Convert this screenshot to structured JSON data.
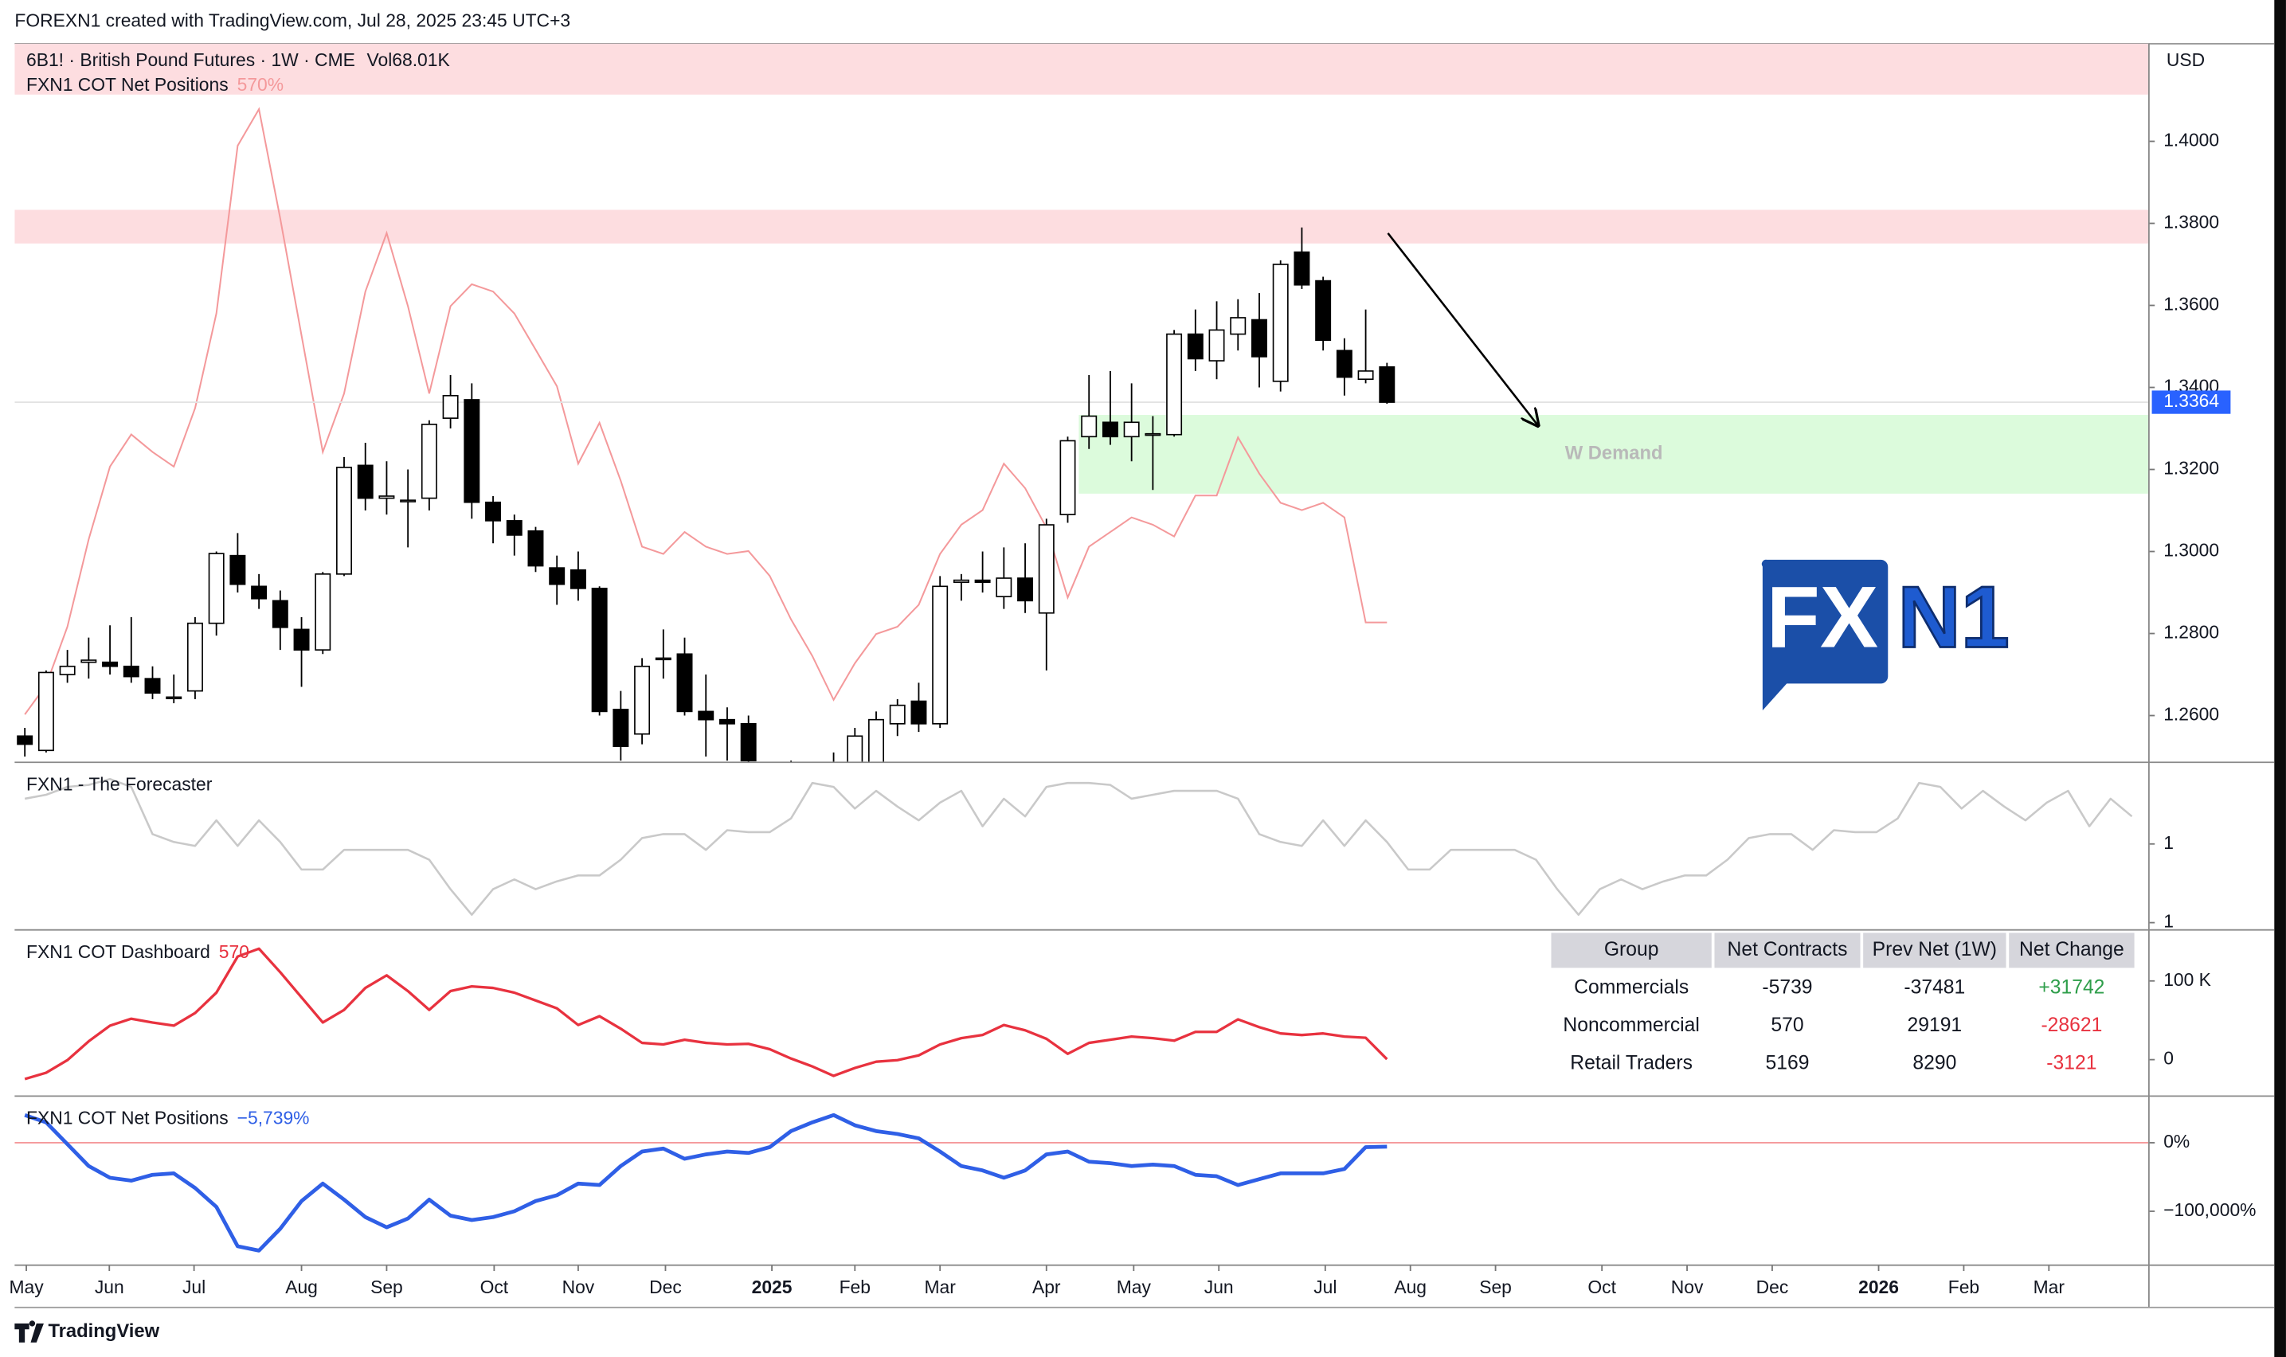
{
  "header": {
    "text": "FOREXN1 created with TradingView.com, Jul 28, 2025 23:45 UTC+3"
  },
  "footer": {
    "brand": "TradingView"
  },
  "logo": {
    "left": "FX",
    "right": "N1"
  },
  "table": {
    "header": [
      "Group",
      "Net Contracts",
      "Prev Net (1W)",
      "Net Change"
    ],
    "rows": [
      [
        "Commercials",
        "-5739",
        "-37481",
        "+31742"
      ],
      [
        "Noncommercial",
        "570",
        "29191",
        "-28621"
      ],
      [
        "Retail Traders",
        "5169",
        "8290",
        "-3121"
      ]
    ]
  },
  "chart_data": [
    {
      "type": "candlestick",
      "title": "6B1! · British Pound Futures · 1W · CME",
      "volume_label": "Vol68.01K",
      "axis_unit": "USD",
      "up_color": "#ffffff",
      "down_color": "#000000",
      "open": [
        1.255,
        1.2515,
        1.27,
        1.273,
        1.273,
        1.272,
        1.269,
        1.2645,
        1.266,
        1.2825,
        1.299,
        1.2915,
        1.288,
        1.281,
        1.276,
        1.2945,
        1.321,
        1.313,
        1.3125,
        1.313,
        1.3325,
        1.337,
        1.312,
        1.3075,
        1.305,
        1.296,
        1.2955,
        1.291,
        1.2615,
        1.2555,
        1.274,
        1.275,
        1.261,
        1.259,
        1.258,
        1.247,
        1.232,
        1.242,
        1.24,
        1.245,
        1.247,
        1.258,
        1.2635,
        1.258,
        1.2925,
        1.293,
        1.289,
        1.2935,
        1.285,
        1.309,
        1.328,
        1.3315,
        1.328,
        1.3285,
        1.3285,
        1.353,
        1.3465,
        1.353,
        1.3565,
        1.3415,
        1.373,
        1.366,
        1.349,
        1.342,
        1.345
      ],
      "high": [
        1.257,
        1.271,
        1.276,
        1.279,
        1.282,
        1.284,
        1.272,
        1.27,
        1.284,
        1.3,
        1.3045,
        1.2945,
        1.2905,
        1.284,
        1.295,
        1.323,
        1.3265,
        1.322,
        1.32,
        1.332,
        1.343,
        1.341,
        1.3135,
        1.309,
        1.306,
        1.299,
        1.3,
        1.2915,
        1.266,
        1.274,
        1.281,
        1.279,
        1.27,
        1.262,
        1.26,
        1.248,
        1.249,
        1.248,
        1.251,
        1.257,
        1.261,
        1.264,
        1.268,
        1.294,
        1.2945,
        1.3,
        1.301,
        1.302,
        1.308,
        1.328,
        1.343,
        1.344,
        1.341,
        1.333,
        1.354,
        1.359,
        1.361,
        1.3615,
        1.363,
        1.371,
        1.379,
        1.367,
        1.352,
        1.359,
        1.346
      ],
      "low": [
        1.25,
        1.251,
        1.268,
        1.269,
        1.27,
        1.268,
        1.264,
        1.263,
        1.264,
        1.2795,
        1.29,
        1.286,
        1.276,
        1.267,
        1.275,
        1.294,
        1.31,
        1.309,
        1.301,
        1.31,
        1.33,
        1.308,
        1.302,
        1.299,
        1.295,
        1.287,
        1.288,
        1.26,
        1.249,
        1.253,
        1.269,
        1.26,
        1.25,
        1.249,
        1.23,
        1.21,
        1.225,
        1.23,
        1.236,
        1.244,
        1.244,
        1.255,
        1.256,
        1.257,
        1.288,
        1.29,
        1.286,
        1.285,
        1.271,
        1.307,
        1.325,
        1.326,
        1.322,
        1.315,
        1.328,
        1.344,
        1.342,
        1.349,
        1.34,
        1.339,
        1.364,
        1.349,
        1.338,
        1.341,
        1.336
      ],
      "close": [
        1.253,
        1.2705,
        1.272,
        1.2735,
        1.272,
        1.2695,
        1.2655,
        1.2645,
        1.2825,
        1.2995,
        1.292,
        1.2885,
        1.2815,
        1.276,
        1.2945,
        1.3205,
        1.313,
        1.3135,
        1.3125,
        1.331,
        1.338,
        1.312,
        1.3075,
        1.304,
        1.2965,
        1.292,
        1.291,
        1.261,
        1.2525,
        1.272,
        1.274,
        1.261,
        1.259,
        1.258,
        1.249,
        1.232,
        1.242,
        1.24,
        1.245,
        1.255,
        1.259,
        1.2625,
        1.258,
        1.2915,
        1.293,
        1.2925,
        1.2935,
        1.288,
        1.3065,
        1.327,
        1.333,
        1.328,
        1.3315,
        1.3287,
        1.353,
        1.347,
        1.354,
        1.357,
        1.3475,
        1.37,
        1.365,
        1.3515,
        1.3425,
        1.344,
        1.3364
      ],
      "last_price_label": "1.3364",
      "last_price_color": "#2962ff",
      "ylim": [
        1.2486,
        1.4238
      ],
      "yticks": [
        {
          "value": 1.26,
          "label": "1.2600"
        },
        {
          "value": 1.28,
          "label": "1.2800"
        },
        {
          "value": 1.3,
          "label": "1.3000"
        },
        {
          "value": 1.32,
          "label": "1.3200"
        },
        {
          "value": 1.34,
          "label": "1.3400"
        },
        {
          "value": 1.36,
          "label": "1.3600"
        },
        {
          "value": 1.38,
          "label": "1.3800"
        },
        {
          "value": 1.4,
          "label": "1.4000"
        }
      ],
      "xlim": [
        -0.48,
        99.8
      ],
      "xticks": [
        {
          "value": 0.07,
          "label": "May"
        },
        {
          "value": 3.97,
          "label": "Jun"
        },
        {
          "value": 7.95,
          "label": "Jul"
        },
        {
          "value": 13.0,
          "label": "Aug"
        },
        {
          "value": 17.0,
          "label": "Sep"
        },
        {
          "value": 22.05,
          "label": "Oct"
        },
        {
          "value": 26.0,
          "label": "Nov"
        },
        {
          "value": 30.1,
          "label": "Dec"
        },
        {
          "value": 35.1,
          "label": "2025"
        },
        {
          "value": 39.0,
          "label": "Feb"
        },
        {
          "value": 43.0,
          "label": "Mar"
        },
        {
          "value": 48.0,
          "label": "Apr"
        },
        {
          "value": 52.1,
          "label": "May"
        },
        {
          "value": 56.1,
          "label": "Jun"
        },
        {
          "value": 61.1,
          "label": "Jul"
        },
        {
          "value": 65.1,
          "label": "Aug"
        },
        {
          "value": 69.1,
          "label": "Sep"
        },
        {
          "value": 74.1,
          "label": "Oct"
        },
        {
          "value": 78.1,
          "label": "Nov"
        },
        {
          "value": 82.1,
          "label": "Dec"
        },
        {
          "value": 87.1,
          "label": "2026"
        },
        {
          "value": 91.1,
          "label": "Feb"
        },
        {
          "value": 95.1,
          "label": "Mar"
        }
      ],
      "zones": [
        {
          "range": [
            1.4114,
            1.426
          ],
          "color": "#fddde0"
        },
        {
          "range": [
            1.3751,
            1.3833
          ],
          "color": "#fddde0"
        },
        {
          "range": [
            1.3141,
            1.3333
          ],
          "start": 50,
          "label": "W Demand",
          "color": "#dcfbdc"
        }
      ],
      "overlay": {
        "name": "FXN1 COT Net Positions",
        "value_label": "570%",
        "color": "#f4999b",
        "ylim": [
          -37.7,
          158.9
        ],
        "values": [
          -24.6,
          -16.6,
          -0.6,
          23.3,
          43.2,
          52.0,
          47.2,
          43.2,
          59.2,
          85.1,
          131.0,
          141.0,
          111.1,
          79.1,
          47.2,
          63.2,
          91.1,
          107.1,
          87.1,
          63.2,
          87.1,
          93.1,
          91.1,
          85.1,
          75.2,
          65.2,
          44.0,
          55.2,
          39.3,
          21.3,
          19.3,
          25.3,
          21.3,
          19.3,
          20.1,
          13.3,
          1.4,
          -8.6,
          -20.6,
          -10.6,
          -2.6,
          -0.6,
          5.4,
          19.3,
          27.3,
          31.3,
          44.0,
          37.3,
          26.5,
          7.4,
          21.3,
          25.3,
          29.3,
          27.3,
          24.1,
          35.3,
          35.3,
          51.2,
          41.3,
          33.3,
          31.3,
          33.3,
          29.3,
          0.57,
          0.57
        ]
      }
    },
    {
      "type": "line",
      "title": "FXN1 - The Forecaster",
      "color": "#c9c9c9",
      "ylim": [
        0.763,
        1.615
      ],
      "yticks": [
        {
          "value": 1.2,
          "label": "1"
        },
        {
          "value": 0.8,
          "label": "1"
        }
      ],
      "values": [
        1.43,
        1.45,
        1.49,
        1.5,
        1.53,
        1.49,
        1.25,
        1.21,
        1.19,
        1.32,
        1.19,
        1.32,
        1.21,
        1.07,
        1.07,
        1.17,
        1.17,
        1.17,
        1.17,
        1.12,
        0.97,
        0.84,
        0.97,
        1.02,
        0.97,
        1.01,
        1.04,
        1.04,
        1.12,
        1.23,
        1.25,
        1.25,
        1.17,
        1.27,
        1.26,
        1.26,
        1.33,
        1.51,
        1.49,
        1.38,
        1.47,
        1.39,
        1.32,
        1.41,
        1.47,
        1.29,
        1.43,
        1.34,
        1.49,
        1.51,
        1.51,
        1.5,
        1.43,
        1.45,
        1.47,
        1.47,
        1.47,
        1.43,
        1.25,
        1.21,
        1.19,
        1.32,
        1.19,
        1.32,
        1.21,
        1.07,
        1.07,
        1.17,
        1.17,
        1.17,
        1.17,
        1.12,
        0.97,
        0.84,
        0.97,
        1.02,
        0.97,
        1.01,
        1.04,
        1.04,
        1.12,
        1.23,
        1.25,
        1.25,
        1.17,
        1.27,
        1.26,
        1.26,
        1.33,
        1.51,
        1.49,
        1.38,
        1.47,
        1.39,
        1.32,
        1.41,
        1.47,
        1.29,
        1.43,
        1.34
      ]
    },
    {
      "type": "line",
      "title": "FXN1 COT Dashboard",
      "value_label": "570",
      "color": "#e8323f",
      "ylim": [
        -46.3,
        164.8
      ],
      "yticks": [
        {
          "value": 100,
          "label": "100 K"
        },
        0
      ],
      "values": [
        -24.6,
        -16.6,
        -0.6,
        23.3,
        43.2,
        52.0,
        47.2,
        43.2,
        59.2,
        85.1,
        131.0,
        141.0,
        111.1,
        79.1,
        47.2,
        63.2,
        91.1,
        107.1,
        87.1,
        63.2,
        87.1,
        93.1,
        91.1,
        85.1,
        75.2,
        65.2,
        44.0,
        55.2,
        39.3,
        21.3,
        19.3,
        25.3,
        21.3,
        19.3,
        20.1,
        13.3,
        1.4,
        -8.6,
        -20.6,
        -10.6,
        -2.6,
        -0.6,
        5.4,
        19.3,
        27.3,
        31.3,
        44.0,
        37.3,
        26.5,
        7.4,
        21.3,
        25.3,
        29.3,
        27.3,
        24.1,
        35.3,
        35.3,
        51.2,
        41.3,
        33.3,
        31.3,
        33.3,
        29.3,
        27.8,
        0.57
      ]
    },
    {
      "type": "line",
      "title": "FXN1 COT Net Positions",
      "value_label": "−5,739%",
      "color": "#2f5fe6",
      "zero_line_color": "#f4999b",
      "ylim": [
        -178700,
        68100
      ],
      "yticks": [
        {
          "value": 0,
          "label": "0%"
        },
        {
          "value": -100000,
          "label": "−100,000%"
        }
      ],
      "values": [
        40400,
        29800,
        -2100,
        -34000,
        -51100,
        -55300,
        -46800,
        -44700,
        -66000,
        -93600,
        -151100,
        -157400,
        -125500,
        -85100,
        -59600,
        -83000,
        -108500,
        -123400,
        -110600,
        -83000,
        -106400,
        -112800,
        -108500,
        -100000,
        -85100,
        -76600,
        -59600,
        -61700,
        -34000,
        -12800,
        -8500,
        -23400,
        -17000,
        -12800,
        -14900,
        -6400,
        17000,
        29800,
        40400,
        25500,
        17000,
        12800,
        6400,
        -12800,
        -34000,
        -40400,
        -51100,
        -40400,
        -17000,
        -12800,
        -27700,
        -29800,
        -34000,
        -31900,
        -34000,
        -46800,
        -48900,
        -61700,
        -53200,
        -44700,
        -44700,
        -44700,
        -38300,
        -6400,
        -5739
      ]
    }
  ]
}
